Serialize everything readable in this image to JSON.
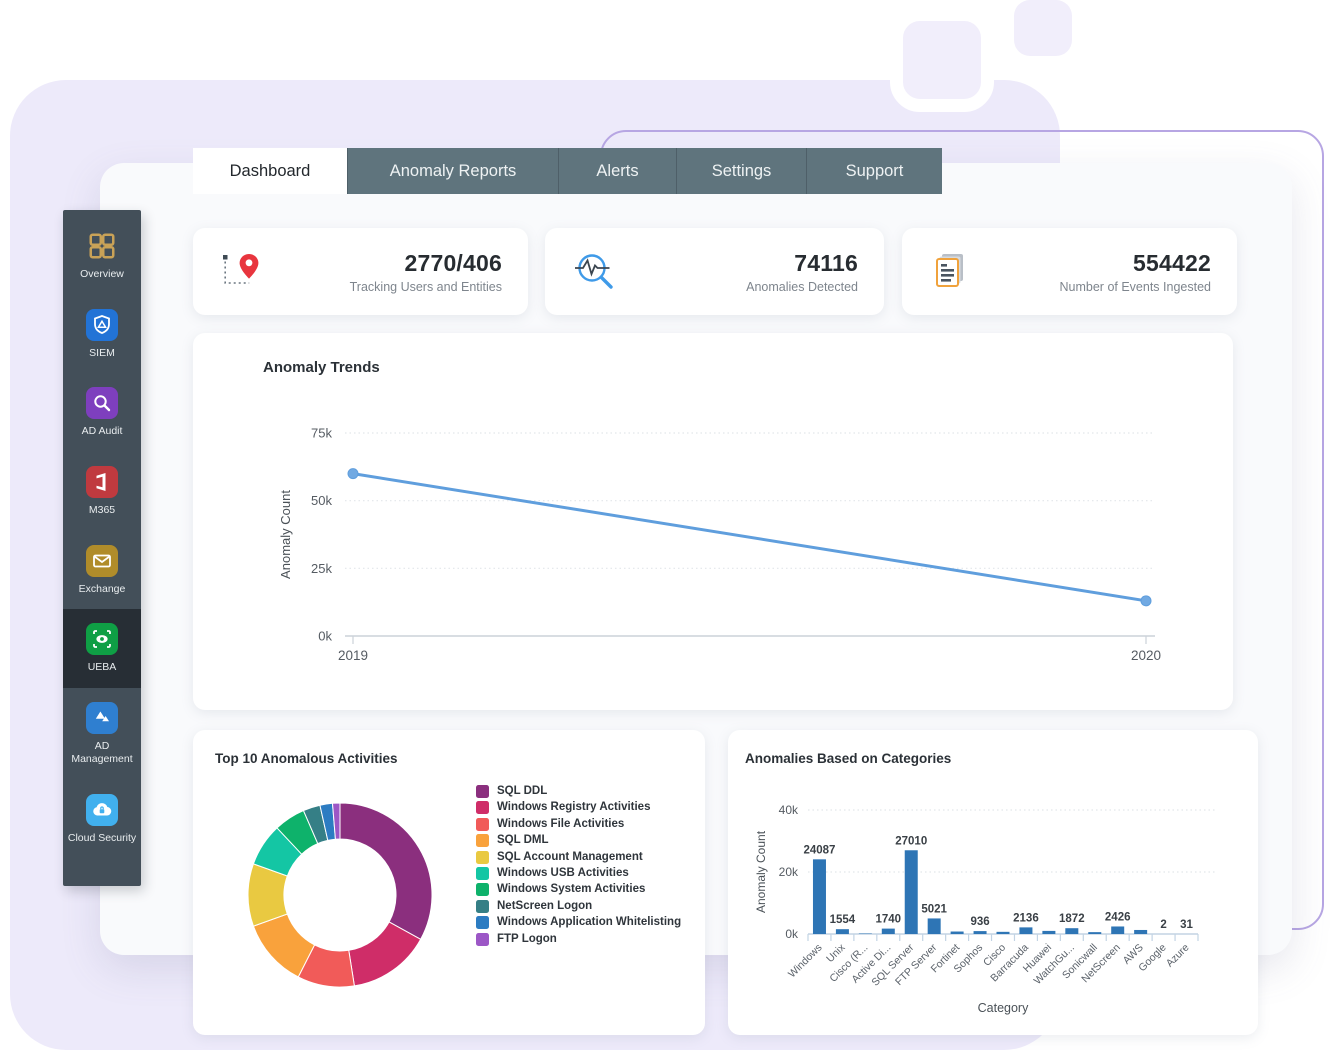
{
  "tabs": {
    "items": [
      {
        "label": "Dashboard",
        "active": true
      },
      {
        "label": "Anomaly Reports",
        "active": false
      },
      {
        "label": "Alerts",
        "active": false
      },
      {
        "label": "Settings",
        "active": false
      },
      {
        "label": "Support",
        "active": false
      }
    ]
  },
  "sidebar": {
    "items": [
      {
        "label": "Overview",
        "icon": "grid-icon",
        "tile_color": "",
        "active": false
      },
      {
        "label": "SIEM",
        "icon": "shield-icon",
        "tile_color": "#2273d6",
        "active": false
      },
      {
        "label": "AD Audit",
        "icon": "magnifier-icon",
        "tile_color": "#7e3fbe",
        "active": false
      },
      {
        "label": "M365",
        "icon": "office-icon",
        "tile_color": "#c03a3f",
        "active": false
      },
      {
        "label": "Exchange",
        "icon": "envelope-icon",
        "tile_color": "#b08c2a",
        "active": false
      },
      {
        "label": "UEBA",
        "icon": "eye-icon",
        "tile_color": "#0f9f45",
        "active": true
      },
      {
        "label": "AD Management",
        "icon": "triangles-icon",
        "tile_color": "#2f7fd0",
        "active": false
      },
      {
        "label": "Cloud Security",
        "icon": "cloud-lock-icon",
        "tile_color": "#41b0ee",
        "active": false
      }
    ]
  },
  "stats": [
    {
      "icon": "tracking-pin-icon",
      "value": "2770/406",
      "label": "Tracking Users and Entities"
    },
    {
      "icon": "anomaly-search-icon",
      "value": "74116",
      "label": "Anomalies Detected"
    },
    {
      "icon": "events-docs-icon",
      "value": "554422",
      "label": "Number of Events Ingested"
    }
  ],
  "chart_data": [
    {
      "id": "anomaly_trends",
      "type": "line",
      "title": "Anomaly Trends",
      "ylabel": "Anomaly Count",
      "x": [
        "2019",
        "2020"
      ],
      "values": [
        60000,
        13000
      ],
      "ylim": [
        0,
        75000
      ],
      "yticks": [
        {
          "label": "75k",
          "value": 75000
        },
        {
          "label": "50k",
          "value": 50000
        },
        {
          "label": "25k",
          "value": 25000
        },
        {
          "label": "0k",
          "value": 0
        }
      ],
      "line_color": "#5f9edd",
      "grid": true,
      "legend_position": "none"
    },
    {
      "id": "top_activities",
      "type": "donut",
      "title": "Top 10 Anomalous Activities",
      "slices": [
        {
          "label": "SQL DDL",
          "percent": 33,
          "color": "#8b2f7e"
        },
        {
          "label": "Windows Registry Activities",
          "percent": 14.5,
          "color": "#cf2d68"
        },
        {
          "label": "Windows File Activities",
          "percent": 10,
          "color": "#f15b59"
        },
        {
          "label": "SQL DML",
          "percent": 12,
          "color": "#f9a23c"
        },
        {
          "label": "SQL Account Management",
          "percent": 11,
          "color": "#e9c941"
        },
        {
          "label": "Windows USB Activities",
          "percent": 7.5,
          "color": "#14c6a4"
        },
        {
          "label": "Windows System Activities",
          "percent": 5.5,
          "color": "#0eb26b"
        },
        {
          "label": "NetScreen Logon",
          "percent": 3,
          "color": "#357f86"
        },
        {
          "label": "Windows Application Whitelisting",
          "percent": 2.2,
          "color": "#2c7cc2"
        },
        {
          "label": "FTP Logon",
          "percent": 1.3,
          "color": "#9c57c6"
        }
      ],
      "legend_position": "right"
    },
    {
      "id": "anomaly_categories",
      "type": "bar",
      "title": "Anomalies Based on Categories",
      "xlabel": "Category",
      "ylabel": "Anomaly Count",
      "ylim": [
        0,
        40000
      ],
      "yticks": [
        {
          "label": "40k",
          "value": 40000
        },
        {
          "label": "20k",
          "value": 20000
        },
        {
          "label": "0k",
          "value": 0
        }
      ],
      "bar_color": "#2e75b5",
      "categories": [
        "Windows",
        "Unix",
        "Cisco (R...",
        "Active Di...",
        "SQL Server",
        "FTP Server",
        "Fortinet",
        "Sophos",
        "Cisco",
        "Barracuda",
        "Huawei",
        "WatchGu...",
        "Sonicwall",
        "NetScreen",
        "AWS",
        "Google",
        "Azure"
      ],
      "values": [
        24087,
        1554,
        150,
        1740,
        27010,
        5021,
        800,
        936,
        700,
        2136,
        1000,
        1872,
        600,
        2426,
        1300,
        2,
        31
      ],
      "value_labels": [
        "24087",
        "1554",
        "",
        "1740",
        "27010",
        "5021",
        "",
        "936",
        "",
        "2136",
        "",
        "1872",
        "",
        "2426",
        "",
        "2",
        "31"
      ],
      "grid": true
    }
  ]
}
